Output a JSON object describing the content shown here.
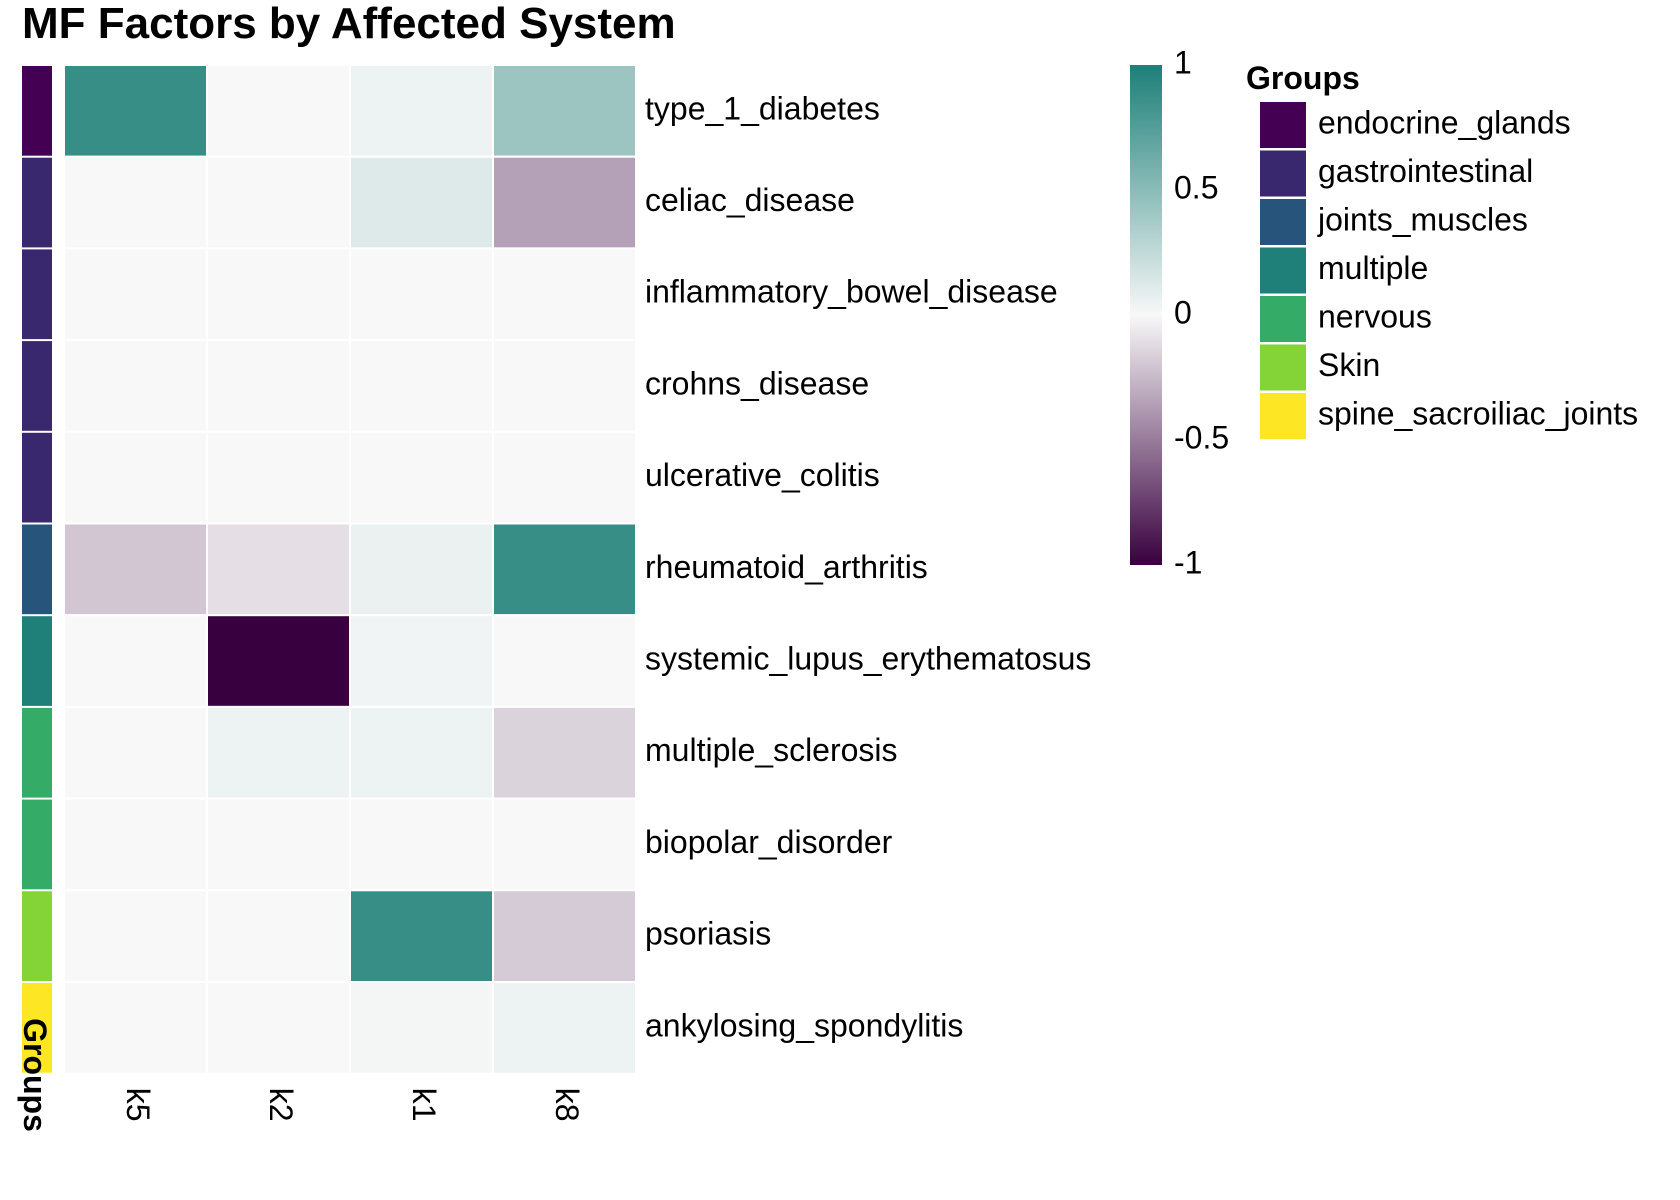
{
  "chart_data": {
    "type": "heatmap",
    "title": "MF Factors by Affected System",
    "columns": [
      "k5",
      "k2",
      "k1",
      "k8"
    ],
    "rows": [
      {
        "label": "type_1_diabetes",
        "group": "endocrine_glands",
        "values": [
          0.88,
          0.0,
          0.05,
          0.42
        ]
      },
      {
        "label": "celiac_disease",
        "group": "gastrointestinal",
        "values": [
          0.0,
          0.0,
          0.12,
          -0.35
        ]
      },
      {
        "label": "inflammatory_bowel_disease",
        "group": "gastrointestinal",
        "values": [
          0.0,
          0.0,
          0.0,
          0.0
        ]
      },
      {
        "label": "crohns_disease",
        "group": "gastrointestinal",
        "values": [
          0.0,
          0.0,
          0.0,
          0.0
        ]
      },
      {
        "label": "ulcerative_colitis",
        "group": "gastrointestinal",
        "values": [
          0.0,
          0.0,
          0.0,
          0.0
        ]
      },
      {
        "label": "rheumatoid_arthritis",
        "group": "joints_muscles",
        "values": [
          -0.2,
          -0.1,
          0.06,
          0.88
        ]
      },
      {
        "label": "systemic_lupus_erythematosus",
        "group": "multiple",
        "values": [
          0.0,
          -1.0,
          0.03,
          0.0
        ]
      },
      {
        "label": "multiple_sclerosis",
        "group": "nervous",
        "values": [
          0.0,
          0.05,
          0.05,
          -0.15
        ]
      },
      {
        "label": "biopolar_disorder",
        "group": "nervous",
        "values": [
          0.0,
          0.0,
          0.0,
          0.0
        ]
      },
      {
        "label": "psoriasis",
        "group": "Skin",
        "values": [
          0.0,
          0.0,
          0.88,
          -0.18
        ]
      },
      {
        "label": "ankylosing_spondylitis",
        "group": "spine_sacroiliac_joints",
        "values": [
          0.0,
          0.0,
          0.02,
          0.05
        ]
      }
    ],
    "groups_axis_label": "Groups",
    "colorbar": {
      "min": -1,
      "max": 1,
      "ticks": [
        {
          "value": 1,
          "label": "1"
        },
        {
          "value": 0.5,
          "label": "0.5"
        },
        {
          "value": 0,
          "label": "0"
        },
        {
          "value": -0.5,
          "label": "-0.5"
        },
        {
          "value": -1,
          "label": "-1"
        }
      ],
      "colors": {
        "low": "#38003E",
        "mid": "#F8F8F8",
        "high": "#1D7F78"
      }
    },
    "legend": {
      "title": "Groups",
      "placement": "right",
      "items": [
        {
          "label": "endocrine_glands",
          "color": "#440154"
        },
        {
          "label": "gastrointestinal",
          "color": "#39286E"
        },
        {
          "label": "joints_muscles",
          "color": "#26547A"
        },
        {
          "label": "multiple",
          "color": "#1F7F79"
        },
        {
          "label": "nervous",
          "color": "#34AB67"
        },
        {
          "label": "Skin",
          "color": "#84D337"
        },
        {
          "label": "spine_sacroiliac_joints",
          "color": "#FDE725"
        }
      ]
    }
  }
}
